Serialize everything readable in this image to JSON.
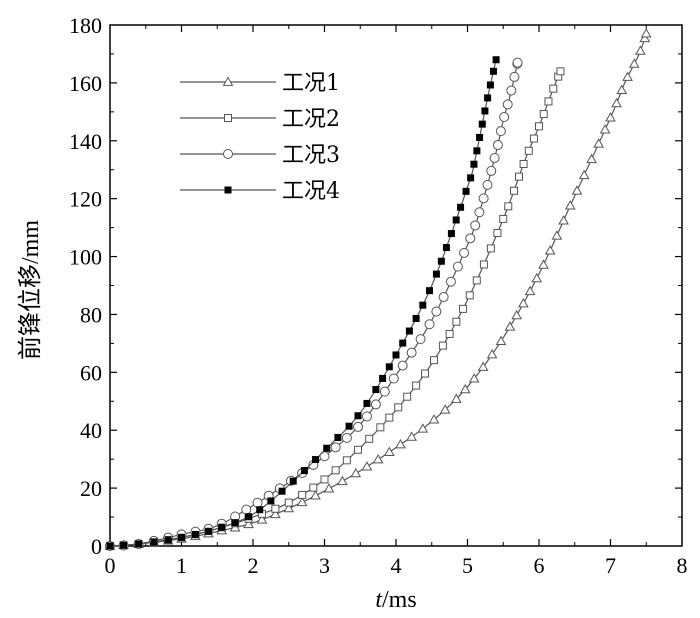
{
  "chart_data": {
    "type": "line",
    "xlabel": "t/ms",
    "xlabel_italic_part": "t",
    "xlabel_rest": "/ms",
    "ylabel": "前锋位移/mm",
    "xlim": [
      0,
      8
    ],
    "ylim": [
      0,
      180
    ],
    "xticks": [
      "0",
      "1",
      "2",
      "3",
      "4",
      "5",
      "6",
      "7",
      "8"
    ],
    "yticks": [
      "0",
      "20",
      "40",
      "60",
      "80",
      "100",
      "120",
      "140",
      "160",
      "180"
    ],
    "grid": false,
    "legend_position": "top-left",
    "series": [
      {
        "name": "工况1",
        "marker": "triangle",
        "color": "#555555",
        "x": [
          0,
          0.4,
          1.0,
          1.5,
          2.0,
          2.5,
          3.0,
          3.5,
          4.0,
          4.5,
          5.0,
          5.5,
          6.0,
          6.5,
          7.0,
          7.2,
          7.4,
          7.5
        ],
        "y": [
          0,
          0.7,
          2.5,
          5,
          8,
          13,
          19,
          26,
          34,
          43,
          55,
          72,
          94,
          121,
          148,
          160,
          170,
          177
        ]
      },
      {
        "name": "工况2",
        "marker": "square-open",
        "color": "#555555",
        "x": [
          0,
          0.4,
          1.0,
          1.5,
          2.0,
          2.5,
          3.0,
          3.5,
          4.0,
          4.5,
          5.0,
          5.5,
          5.8,
          6.0,
          6.2,
          6.3
        ],
        "y": [
          0,
          0.7,
          3,
          6,
          10,
          15,
          23,
          34,
          47,
          63,
          85,
          113,
          133,
          145,
          158,
          164
        ]
      },
      {
        "name": "工况3",
        "marker": "circle-open",
        "color": "#555555",
        "x": [
          0,
          0.4,
          1.0,
          1.5,
          2.0,
          2.5,
          3.0,
          3.5,
          4.0,
          4.5,
          5.0,
          5.2,
          5.4,
          5.5,
          5.6,
          5.7
        ],
        "y": [
          0,
          0.7,
          4,
          7,
          14,
          22,
          31,
          42,
          59,
          78,
          104,
          118,
          136,
          147,
          156,
          167
        ]
      },
      {
        "name": "工况4",
        "marker": "square-filled",
        "color": "#555555",
        "x": [
          0,
          0.4,
          1.0,
          1.5,
          2.0,
          2.5,
          3.0,
          3.5,
          4.0,
          4.5,
          5.0,
          5.1,
          5.2,
          5.3,
          5.4
        ],
        "y": [
          0,
          0.7,
          3,
          6,
          11,
          21,
          33,
          46,
          66,
          90,
          124,
          133,
          145,
          157,
          168
        ]
      }
    ]
  }
}
